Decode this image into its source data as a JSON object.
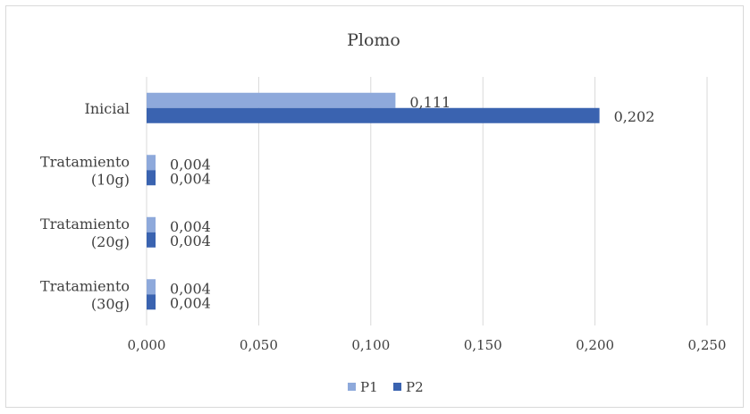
{
  "chart_data": {
    "type": "bar",
    "orientation": "horizontal",
    "title": "Plomo",
    "categories": [
      [
        "Inicial"
      ],
      [
        "Tratamiento",
        "(10g)"
      ],
      [
        "Tratamiento",
        "(20g)"
      ],
      [
        "Tratamiento",
        "(30g)"
      ]
    ],
    "series": [
      {
        "name": "P1",
        "color": "#8ea9db",
        "values": [
          0.111,
          0.004,
          0.004,
          0.004
        ],
        "labels": [
          "0,111",
          "0,004",
          "0,004",
          "0,004"
        ]
      },
      {
        "name": "P2",
        "color": "#3a63b0",
        "values": [
          0.202,
          0.004,
          0.004,
          0.004
        ],
        "labels": [
          "0,202",
          "0,004",
          "0,004",
          "0,004"
        ]
      }
    ],
    "xlim": [
      0,
      0.25
    ],
    "xticks": [
      0,
      0.05,
      0.1,
      0.15,
      0.2,
      0.25
    ],
    "xtick_labels": [
      "0,000",
      "0,050",
      "0,100",
      "0,150",
      "0,200",
      "0,250"
    ],
    "xlabel": "",
    "ylabel": "",
    "grid": "vertical",
    "legend_position": "bottom"
  }
}
